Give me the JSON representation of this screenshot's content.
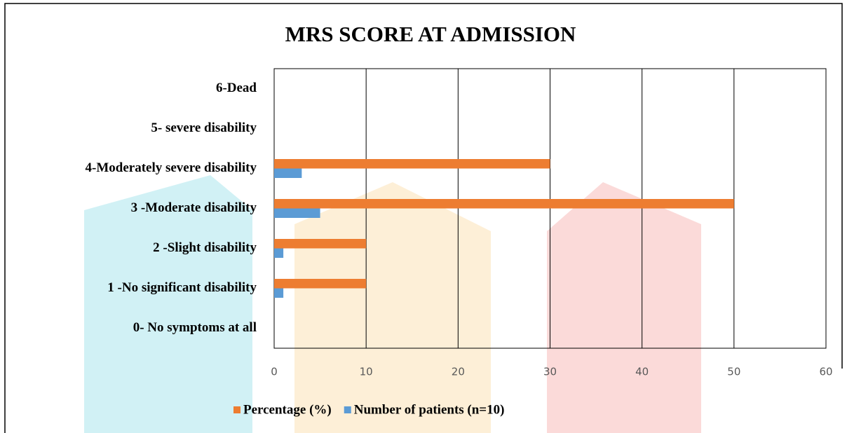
{
  "chart_data": {
    "type": "barh",
    "title": "MRS SCORE  AT ADMISSION",
    "categories": [
      "0- No symptoms at all",
      "1 -No significant disability",
      "2 -Slight disability",
      "3 -Moderate disability",
      "4-Moderately severe disability",
      "5- severe disability",
      "6-Dead"
    ],
    "series": [
      {
        "name": "Percentage (%)",
        "color": "#ed7d31",
        "values": [
          0,
          10,
          10,
          50,
          30,
          0,
          0
        ]
      },
      {
        "name": "Number of patients  (n=10)",
        "color": "#5b9bd5",
        "values": [
          0,
          1,
          1,
          5,
          3,
          0,
          0
        ]
      }
    ],
    "xlim": [
      0,
      60
    ],
    "xticks": [
      0,
      10,
      20,
      30,
      40,
      50,
      60
    ],
    "grid": true,
    "legend": "bottom"
  }
}
